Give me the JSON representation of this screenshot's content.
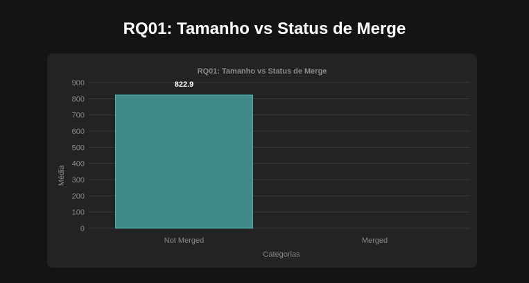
{
  "page": {
    "title": "RQ01: Tamanho vs Status de Merge"
  },
  "chart_data": {
    "type": "bar",
    "title": "RQ01: Tamanho vs Status de Merge",
    "xlabel": "Categorias",
    "ylabel": "Média",
    "categories": [
      "Not Merged",
      "Merged"
    ],
    "values": [
      822.9,
      0
    ],
    "data_labels": [
      "822.9",
      ""
    ],
    "ylim": [
      0,
      900
    ],
    "y_ticks": [
      0,
      100,
      200,
      300,
      400,
      500,
      600,
      700,
      800,
      900
    ],
    "grid": true,
    "legend": "none",
    "colors": {
      "bar_fill": "#3f8a87",
      "bar_stroke": "#4fb3ad",
      "grid": "#3a3a3a",
      "axis_text": "#8a8a8a",
      "title_text": "#8a8a8a",
      "data_label": "#ffffff"
    }
  }
}
